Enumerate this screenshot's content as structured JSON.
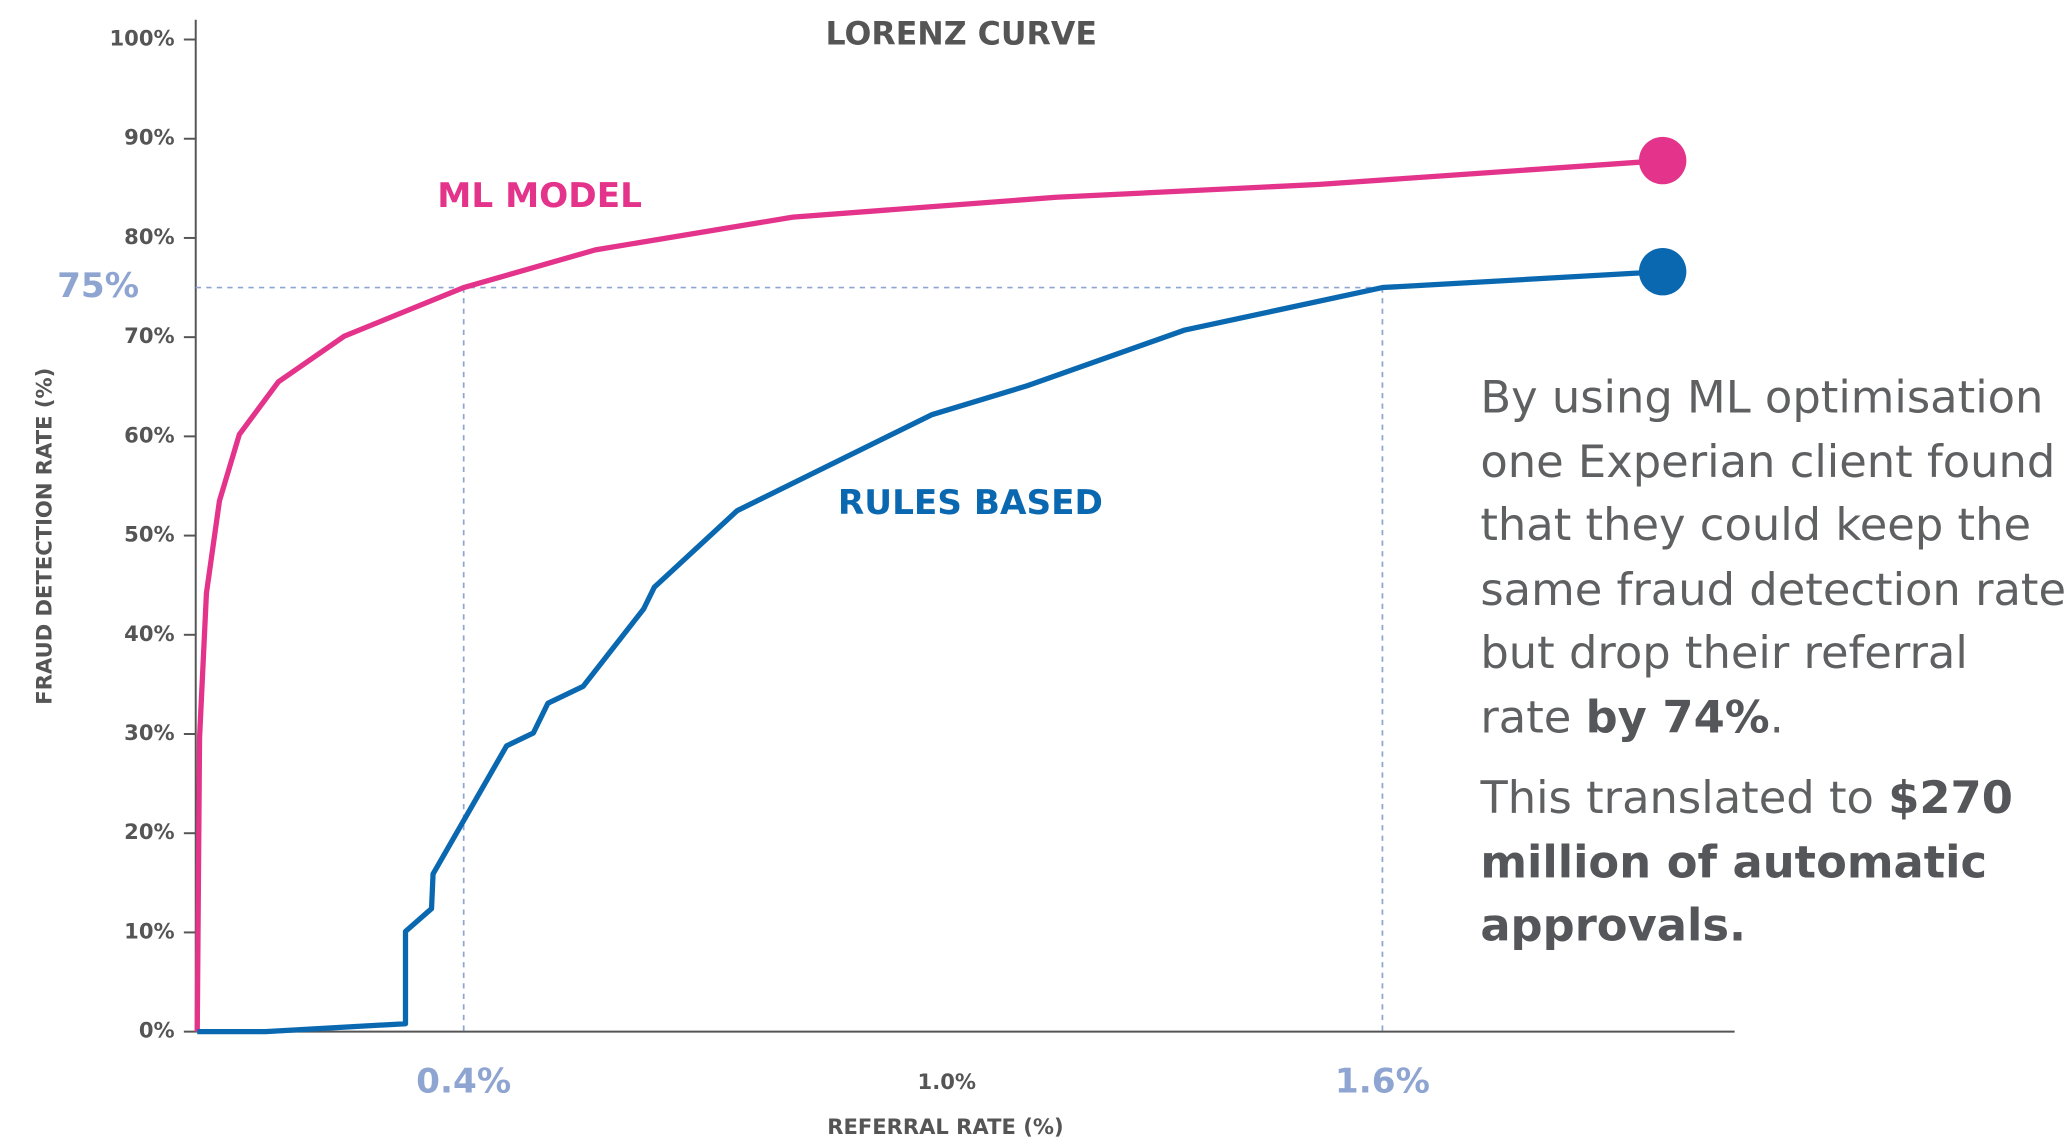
{
  "chart_data": {
    "type": "line",
    "title": "LORENZ CURVE",
    "x_label": "REFERRAL RATE (%)",
    "y_label": "FRAUD DETECTION RATE (%)",
    "xlim": [
      0.05,
      2.06
    ],
    "ylim": [
      0,
      100
    ],
    "xticks": [
      {
        "value": 0.4,
        "label": "0.4%"
      },
      {
        "value": 1.0,
        "label": "1.0%"
      },
      {
        "value": 1.6,
        "label": "1.6%"
      }
    ],
    "yticks": [
      {
        "value": 0,
        "label": "0%"
      },
      {
        "value": 10,
        "label": "10%"
      },
      {
        "value": 20,
        "label": "20%"
      },
      {
        "value": 30,
        "label": "30%"
      },
      {
        "value": 40,
        "label": "40%"
      },
      {
        "value": 50,
        "label": "50%"
      },
      {
        "value": 60,
        "label": "60%"
      },
      {
        "value": 70,
        "label": "70%"
      },
      {
        "value": 80,
        "label": "80%"
      },
      {
        "value": 90,
        "label": "90%"
      },
      {
        "value": 100,
        "label": "100%"
      }
    ],
    "reference_x": [
      0.4,
      1.6
    ],
    "reference_y": {
      "value": 75,
      "label": "75%"
    },
    "reference_color": "#8fa5d1",
    "series": [
      {
        "name": "ML MODEL",
        "color": "#e4338a",
        "x": [
          0.052,
          0.055,
          0.064,
          0.081,
          0.107,
          0.158,
          0.244,
          0.4,
          0.572,
          0.83,
          1.174,
          1.518,
          1.966
        ],
        "values": [
          0,
          29.6,
          44.2,
          53.5,
          60.2,
          65.5,
          70.1,
          75,
          78.8,
          82.1,
          84.1,
          85.4,
          87.8
        ]
      },
      {
        "name": "RULES BASED",
        "color": "#0a68b0",
        "x": [
          0.052,
          0.141,
          0.324,
          0.324,
          0.358,
          0.36,
          0.456,
          0.491,
          0.51,
          0.556,
          0.635,
          0.649,
          0.757,
          1.012,
          1.136,
          1.341,
          1.6,
          1.966
        ],
        "values": [
          0,
          0,
          0.8,
          10.1,
          12.4,
          15.9,
          28.8,
          30.1,
          33.1,
          34.8,
          42.6,
          44.8,
          52.5,
          62.2,
          65.1,
          70.7,
          75,
          76.6
        ]
      }
    ],
    "callout": [
      [
        "By using ML optimisation one Experian client found that they could keep the same fraud detection rate but drop their referral rate ",
        "by 74%",
        "."
      ],
      [
        "This translated to ",
        "$270 million of automatic approvals."
      ]
    ]
  }
}
